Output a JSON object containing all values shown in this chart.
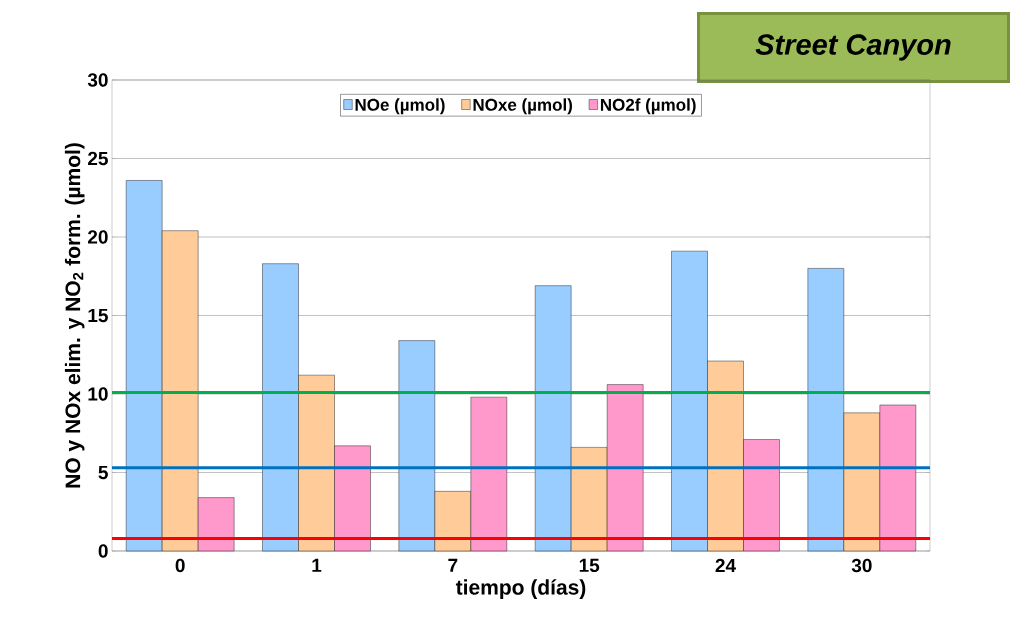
{
  "chart_data": {
    "type": "bar",
    "title": "Street Canyon",
    "xlabel": "tiempo (días)",
    "ylabel": "NO y NOx elim. y NO$_{2}$ form. (µmol)",
    "categories": [
      "0",
      "1",
      "7",
      "15",
      "24",
      "30"
    ],
    "series": [
      {
        "name": "NOe (µmol)",
        "color": "#99ccff",
        "values": [
          23.6,
          18.3,
          13.4,
          16.9,
          19.1,
          18.0
        ]
      },
      {
        "name": "NOxe (µmol)",
        "color": "#ffcc99",
        "values": [
          20.4,
          11.2,
          3.8,
          6.6,
          12.1,
          8.8
        ]
      },
      {
        "name": "NO2f (µmol)",
        "color": "#ff99cc",
        "values": [
          3.4,
          6.7,
          9.8,
          10.6,
          7.1,
          9.3
        ]
      }
    ],
    "ylim": [
      0,
      30
    ],
    "yticks": [
      0,
      5,
      10,
      15,
      20,
      25,
      30
    ],
    "grid": "y",
    "legend": "top",
    "ref_lines": [
      {
        "axis": "y",
        "value": 10.1,
        "color": "#00b050"
      },
      {
        "axis": "y",
        "value": 5.3,
        "color": "#0070c0"
      },
      {
        "axis": "y",
        "value": 0.8,
        "color": "#ff0000"
      }
    ]
  }
}
